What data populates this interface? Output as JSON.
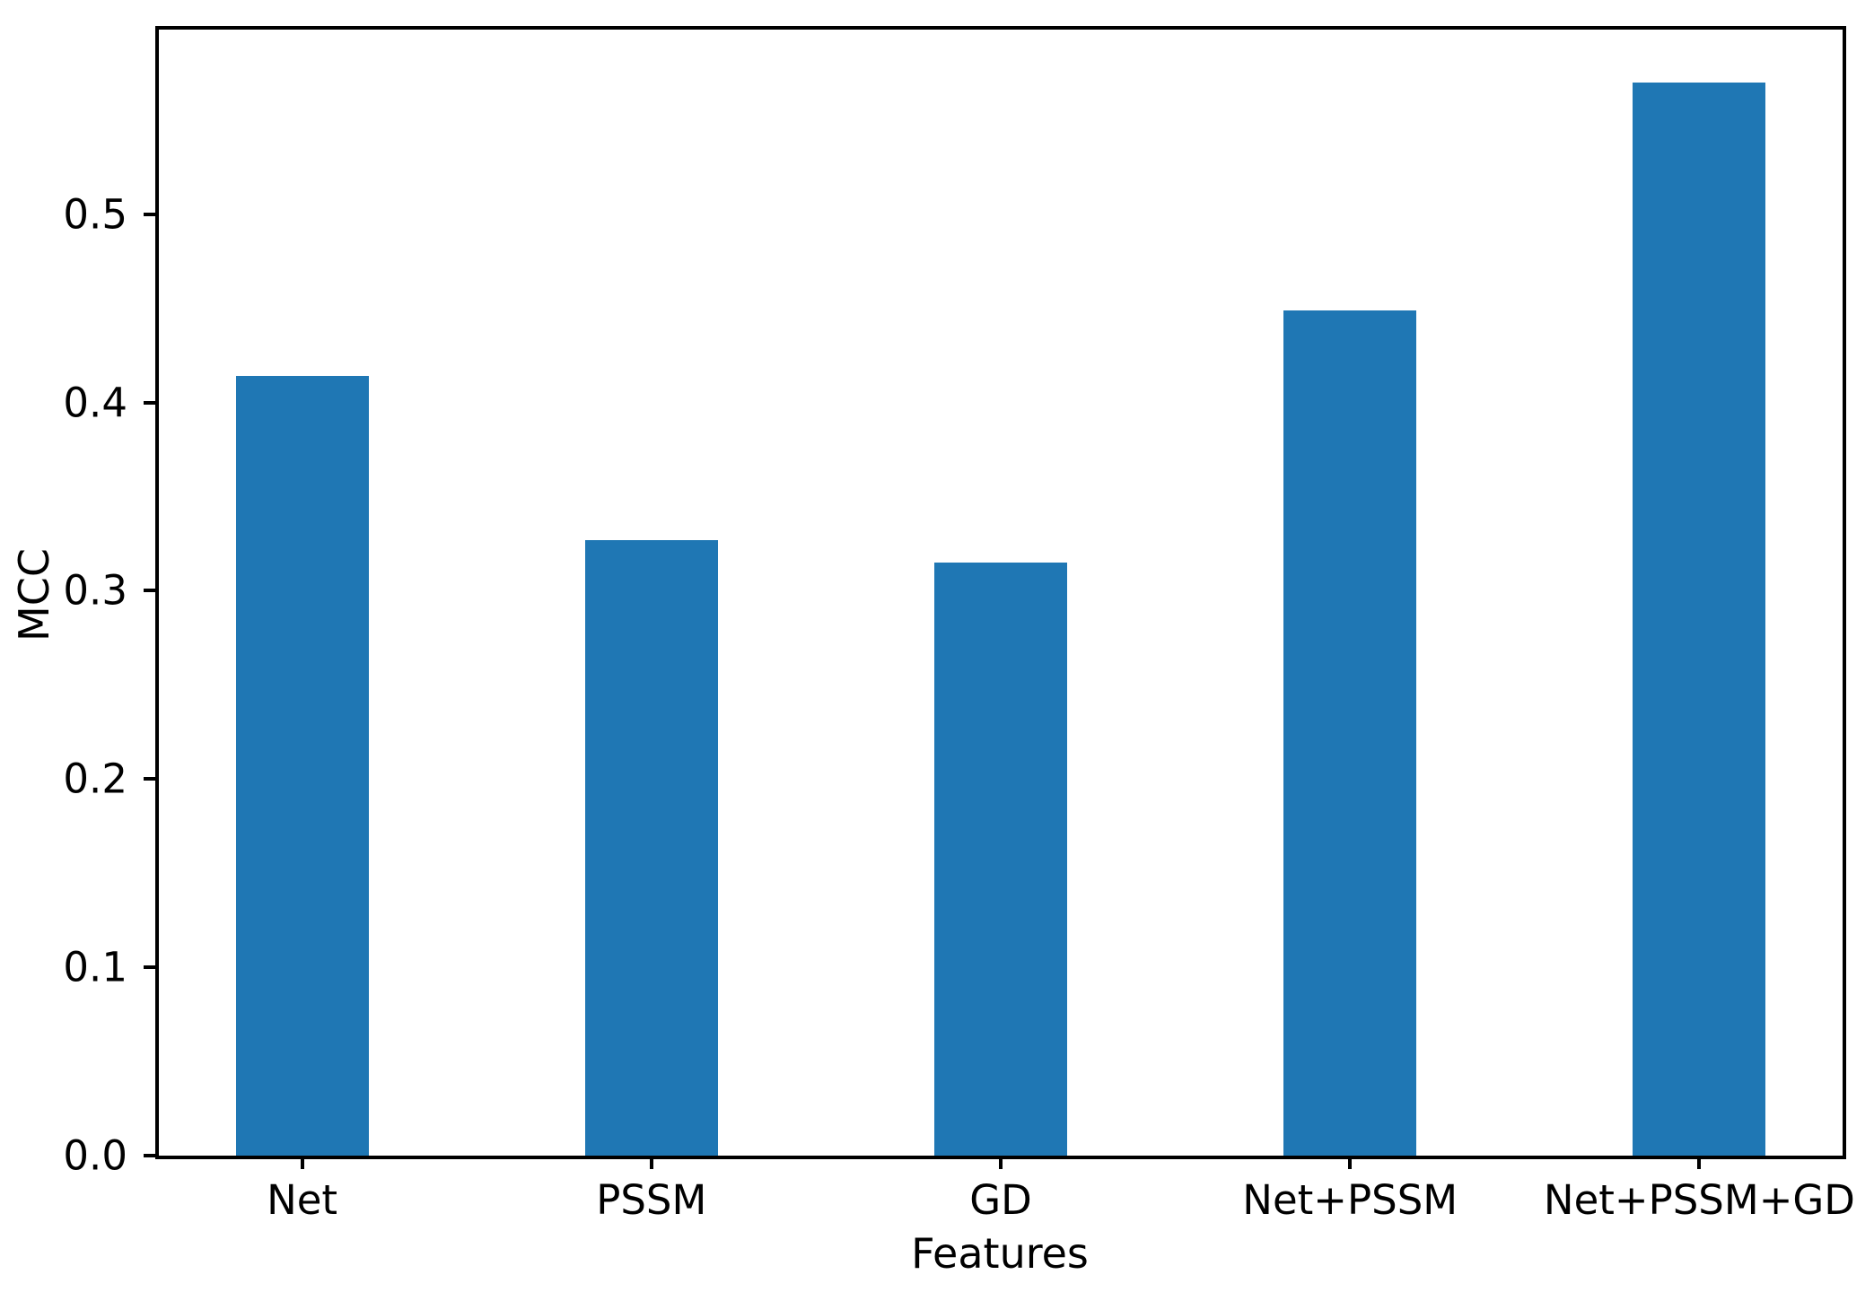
{
  "chart_data": {
    "type": "bar",
    "title": "",
    "xlabel": "Features",
    "ylabel": "MCC",
    "categories": [
      "Net",
      "PSSM",
      "GD",
      "Net+PSSM",
      "Net+PSSM+GD"
    ],
    "values": [
      0.414,
      0.327,
      0.315,
      0.449,
      0.57
    ],
    "bar_color": "#1f77b4",
    "axis_color": "#000000",
    "background_color": "#ffffff",
    "ylim": [
      0,
      0.598
    ],
    "xlim": [
      -0.41,
      4.41
    ],
    "bar_width_units": 0.38,
    "yticks": [
      0.0,
      0.1,
      0.2,
      0.3,
      0.4,
      0.5
    ],
    "ytick_labels": [
      "0.0",
      "0.1",
      "0.2",
      "0.3",
      "0.4",
      "0.5"
    ],
    "grid": false,
    "legend": null
  }
}
